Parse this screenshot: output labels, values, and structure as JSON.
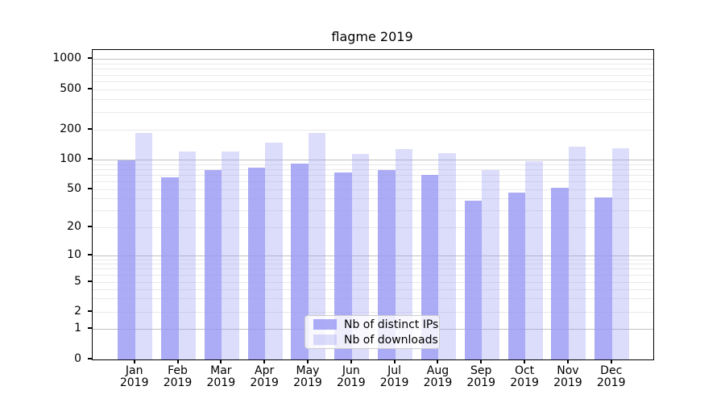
{
  "chart_data": {
    "type": "bar",
    "title": "flagme 2019",
    "categories": [
      "Jan 2019",
      "Feb 2019",
      "Mar 2019",
      "Apr 2019",
      "May 2019",
      "Jun 2019",
      "Jul 2019",
      "Aug 2019",
      "Sep 2019",
      "Oct 2019",
      "Nov 2019",
      "Dec 2019"
    ],
    "x_tick_labels": {
      "months": [
        "Jan",
        "Feb",
        "Mar",
        "Apr",
        "May",
        "Jun",
        "Jul",
        "Aug",
        "Sep",
        "Oct",
        "Nov",
        "Dec"
      ],
      "year": "2019"
    },
    "series": [
      {
        "name": "Nb of distinct IPs",
        "color": "rgba(150,150,244,0.8)",
        "values": [
          98,
          66,
          78,
          83,
          91,
          74,
          78,
          70,
          38,
          46,
          52,
          41
        ]
      },
      {
        "name": "Nb of downloads",
        "color": "rgba(150,150,244,0.33)",
        "values": [
          185,
          121,
          120,
          147,
          185,
          113,
          128,
          116,
          78,
          96,
          135,
          130
        ]
      }
    ],
    "y_axis": {
      "scale": "log-like (symlog, linear below 1)",
      "tick_labels": [
        "0",
        "1",
        "2",
        "5",
        "10",
        "20",
        "50",
        "100",
        "200",
        "500",
        "1000"
      ],
      "range": [
        0,
        1200
      ]
    },
    "legend": {
      "entries": [
        "Nb of distinct IPs",
        "Nb of downloads"
      ],
      "position": "lower-center"
    },
    "grid": {
      "shown": true,
      "major_color": "#c0c0c0",
      "minor_color": "#e9e9e9"
    }
  }
}
